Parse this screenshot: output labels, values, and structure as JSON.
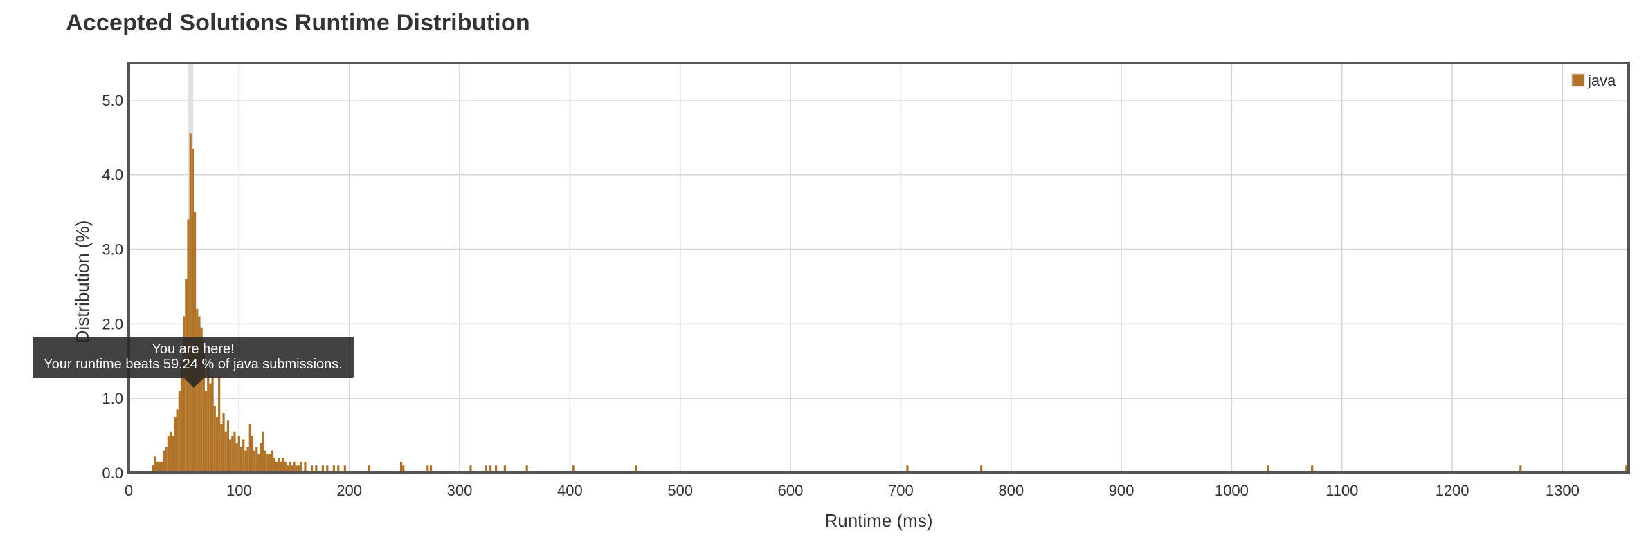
{
  "page": {
    "title": "Accepted Solutions Runtime Distribution"
  },
  "tooltip": {
    "line1": "You are here!",
    "line2": "Your runtime beats 59.24 % of java submissions."
  },
  "chart_data": {
    "type": "bar",
    "title": "Accepted Solutions Runtime Distribution",
    "xlabel": "Runtime (ms)",
    "ylabel": "Distribution (%)",
    "xlim": [
      0,
      1360
    ],
    "ylim": [
      0,
      5.5
    ],
    "xticks": [
      "0",
      "100",
      "200",
      "300",
      "400",
      "500",
      "600",
      "700",
      "800",
      "900",
      "1000",
      "1100",
      "1200",
      "1300"
    ],
    "yticks": [
      "0.0",
      "1.0",
      "2.0",
      "3.0",
      "4.0",
      "5.0"
    ],
    "grid": true,
    "legend_position": "top-right",
    "bar_color": "#b07328",
    "highlight_color": "#e2e2e2",
    "highlight_x": 56,
    "series": [
      {
        "name": "java",
        "x": [
          22,
          24,
          26,
          28,
          30,
          32,
          34,
          36,
          38,
          40,
          42,
          44,
          46,
          48,
          50,
          52,
          54,
          56,
          58,
          60,
          62,
          64,
          66,
          68,
          70,
          72,
          74,
          76,
          78,
          80,
          82,
          84,
          86,
          88,
          90,
          92,
          94,
          96,
          98,
          100,
          102,
          104,
          106,
          108,
          110,
          112,
          114,
          116,
          118,
          120,
          122,
          124,
          126,
          128,
          130,
          132,
          134,
          136,
          138,
          140,
          142,
          144,
          146,
          148,
          150,
          152,
          154,
          156,
          160,
          166,
          170,
          176,
          180,
          186,
          190,
          196,
          218,
          247,
          249,
          271,
          274,
          310,
          324,
          328,
          333,
          341,
          361,
          403,
          460,
          706,
          773,
          1033,
          1073,
          1262,
          1358
        ],
        "values": [
          0.1,
          0.22,
          0.15,
          0.15,
          0.15,
          0.3,
          0.35,
          0.5,
          0.55,
          0.5,
          0.75,
          0.85,
          1.1,
          1.5,
          2.1,
          2.6,
          3.4,
          4.55,
          4.35,
          3.5,
          2.2,
          2.1,
          1.95,
          1.7,
          1.1,
          1.4,
          1.2,
          1.3,
          0.9,
          0.75,
          1.3,
          0.65,
          0.8,
          0.55,
          0.7,
          0.45,
          0.5,
          0.55,
          0.4,
          0.5,
          0.35,
          0.45,
          0.3,
          0.35,
          0.65,
          0.5,
          0.3,
          0.35,
          0.25,
          0.4,
          0.55,
          0.3,
          0.25,
          0.25,
          0.3,
          0.2,
          0.15,
          0.2,
          0.15,
          0.2,
          0.15,
          0.1,
          0.15,
          0.1,
          0.15,
          0.1,
          0.1,
          0.15,
          0.15,
          0.1,
          0.1,
          0.1,
          0.1,
          0.1,
          0.1,
          0.1,
          0.1,
          0.15,
          0.1,
          0.1,
          0.1,
          0.1,
          0.1,
          0.1,
          0.1,
          0.1,
          0.1,
          0.1,
          0.1,
          0.1,
          0.1,
          0.1,
          0.1,
          0.1,
          0.1
        ]
      }
    ]
  }
}
